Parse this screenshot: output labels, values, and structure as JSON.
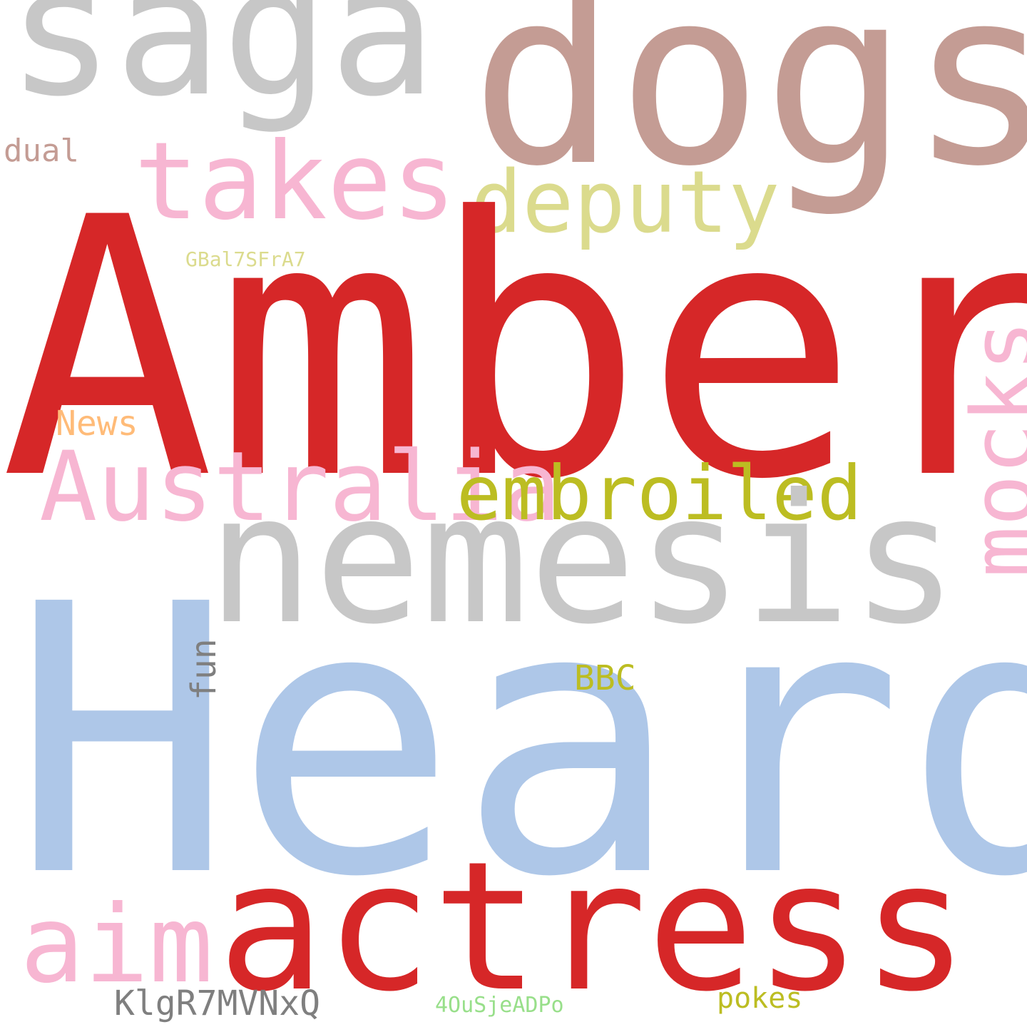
{
  "cloud": {
    "background": "#ffffff",
    "words": {
      "amber": {
        "text": "Amber",
        "color": "#d62728"
      },
      "heard": {
        "text": "Heard",
        "color": "#aec7e8"
      },
      "dogs": {
        "text": "dogs",
        "color": "#c49c94"
      },
      "saga": {
        "text": "saga",
        "color": "#c7c7c7"
      },
      "nemesis": {
        "text": "nemesis",
        "color": "#c7c7c7"
      },
      "actress": {
        "text": "actress",
        "color": "#d62728"
      },
      "takes": {
        "text": "takes",
        "color": "#f7b6d2"
      },
      "deputy": {
        "text": "deputy",
        "color": "#dbdb8d"
      },
      "australia": {
        "text": "Australia",
        "color": "#f7b6d2"
      },
      "embroiled": {
        "text": "embroiled",
        "color": "#bcbd22"
      },
      "aim": {
        "text": "aim",
        "color": "#f7b6d2"
      },
      "mocks": {
        "text": "mocks",
        "color": "#f7b6d2"
      },
      "dual": {
        "text": "dual",
        "color": "#c49c94"
      },
      "news": {
        "text": "News",
        "color": "#ffbb78"
      },
      "gbal": {
        "text": "GBal7SFrA7",
        "color": "#dbdb8d"
      },
      "fun": {
        "text": "fun",
        "color": "#7f7f7f"
      },
      "bbc": {
        "text": "BBC",
        "color": "#bcbd22"
      },
      "klg": {
        "text": "KlgR7MVNxQ",
        "color": "#7f7f7f"
      },
      "fourou": {
        "text": "4OuSjeADPo",
        "color": "#98df8a"
      },
      "pokes": {
        "text": "pokes",
        "color": "#bcbd22"
      }
    }
  }
}
